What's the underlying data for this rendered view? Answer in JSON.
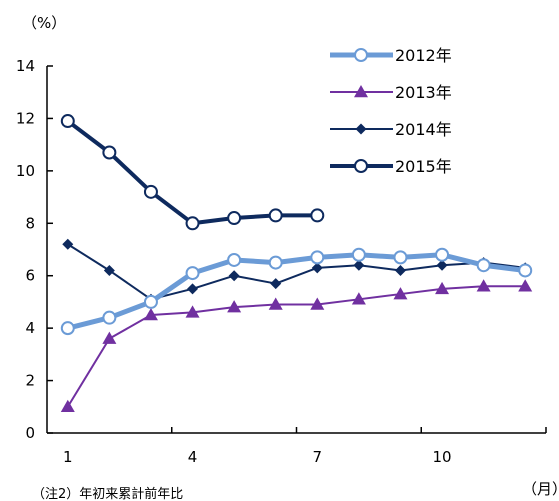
{
  "chart_data": {
    "type": "line",
    "x": [
      1,
      2,
      3,
      4,
      5,
      6,
      7,
      8,
      9,
      10,
      11,
      12
    ],
    "x_tick_labels": [
      {
        "x": 1,
        "label": "1"
      },
      {
        "x": 4,
        "label": "4"
      },
      {
        "x": 7,
        "label": "7"
      },
      {
        "x": 10,
        "label": "10"
      }
    ],
    "y_ticks": [
      0,
      2,
      4,
      6,
      8,
      10,
      12,
      14
    ],
    "ylim": [
      0,
      14
    ],
    "xlim": [
      0.5,
      12.5
    ],
    "y_unit": "（%）",
    "x_unit": "（月）",
    "note": "（注2）年初来累計前年比",
    "legend_position": "top-right",
    "series": [
      {
        "name": "2012年",
        "color": "#6b9bd6",
        "marker": "open-circle",
        "width": 5,
        "values": [
          4.0,
          4.4,
          5.0,
          6.1,
          6.6,
          6.5,
          6.7,
          6.8,
          6.7,
          6.8,
          6.4,
          6.2
        ]
      },
      {
        "name": "2013年",
        "color": "#7030a0",
        "marker": "triangle",
        "width": 2,
        "values": [
          1.0,
          3.6,
          4.5,
          4.6,
          4.8,
          4.9,
          4.9,
          5.1,
          5.3,
          5.5,
          5.6,
          5.6
        ]
      },
      {
        "name": "2014年",
        "color": "#0e2a5e",
        "marker": "diamond",
        "width": 2,
        "values": [
          7.2,
          6.2,
          5.1,
          5.5,
          6.0,
          5.7,
          6.3,
          6.4,
          6.2,
          6.4,
          6.5,
          6.3
        ]
      },
      {
        "name": "2015年",
        "color": "#0e2a5e",
        "marker": "open-circle",
        "width": 4,
        "values": [
          11.9,
          10.7,
          9.2,
          8.0,
          8.2,
          8.3,
          8.3,
          null,
          null,
          null,
          null,
          null
        ]
      }
    ]
  }
}
